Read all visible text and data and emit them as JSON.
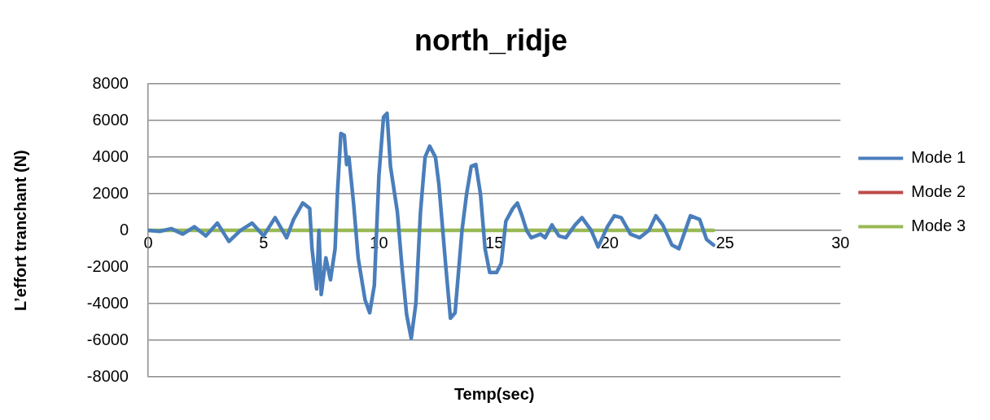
{
  "chart_data": {
    "type": "line",
    "title": "north_ridje",
    "xlabel": "Temp(sec)",
    "ylabel": "L’effort tranchant (N)",
    "xlim": [
      0,
      30
    ],
    "xticks": [
      0,
      5,
      10,
      15,
      20,
      25,
      30
    ],
    "ylim": [
      -8000,
      8000
    ],
    "yticks": [
      -8000,
      -6000,
      -4000,
      -2000,
      0,
      2000,
      4000,
      6000,
      8000
    ],
    "grid": "y",
    "legend": "right",
    "marker": "none",
    "line_style": "solid",
    "series": [
      {
        "name": "Mode 1",
        "color": "#4a7ebb",
        "x": [
          0,
          0.5,
          1,
          1.5,
          2,
          2.5,
          3,
          3.5,
          4,
          4.5,
          5,
          5.5,
          6,
          6.3,
          6.7,
          7,
          7.1,
          7.3,
          7.4,
          7.5,
          7.7,
          7.9,
          8.1,
          8.2,
          8.35,
          8.5,
          8.6,
          8.7,
          8.9,
          9.1,
          9.4,
          9.6,
          9.8,
          10,
          10.2,
          10.35,
          10.5,
          10.8,
          11,
          11.2,
          11.4,
          11.6,
          11.8,
          12,
          12.2,
          12.45,
          12.6,
          12.9,
          13.1,
          13.3,
          13.6,
          13.8,
          14,
          14.2,
          14.4,
          14.6,
          14.8,
          15.1,
          15.3,
          15.5,
          15.8,
          16,
          16.2,
          16.4,
          16.6,
          17,
          17.2,
          17.5,
          17.8,
          18.1,
          18.5,
          18.8,
          19.2,
          19.5,
          19.9,
          20.2,
          20.5,
          20.9,
          21.3,
          21.7,
          22,
          22.3,
          22.7,
          23,
          23.5,
          23.9,
          24.2,
          24.5
        ],
        "values": [
          0,
          -50,
          100,
          -200,
          200,
          -300,
          400,
          -600,
          0,
          400,
          -300,
          700,
          -400,
          600,
          1500,
          1200,
          -1000,
          -3200,
          0,
          -3500,
          -1500,
          -2700,
          -1000,
          2000,
          5300,
          5200,
          3600,
          4000,
          1500,
          -1500,
          -3800,
          -4500,
          -3000,
          3000,
          6200,
          6400,
          3500,
          1000,
          -2000,
          -4600,
          -5900,
          -4000,
          1000,
          4000,
          4600,
          4000,
          2500,
          -2000,
          -4800,
          -4500,
          0,
          2000,
          3500,
          3600,
          2000,
          -1000,
          -2300,
          -2300,
          -1800,
          500,
          1200,
          1500,
          800,
          0,
          -400,
          -200,
          -400,
          300,
          -300,
          -400,
          300,
          700,
          0,
          -900,
          200,
          800,
          700,
          -200,
          -400,
          0,
          800,
          300,
          -800,
          -1000,
          800,
          600,
          -500,
          -800
        ]
      },
      {
        "name": "Mode 2",
        "color": "#be4b48"
      },
      {
        "name": "Mode 3",
        "color": "#98b954",
        "x": [
          0,
          24.5
        ],
        "values": [
          0,
          0
        ]
      }
    ]
  }
}
